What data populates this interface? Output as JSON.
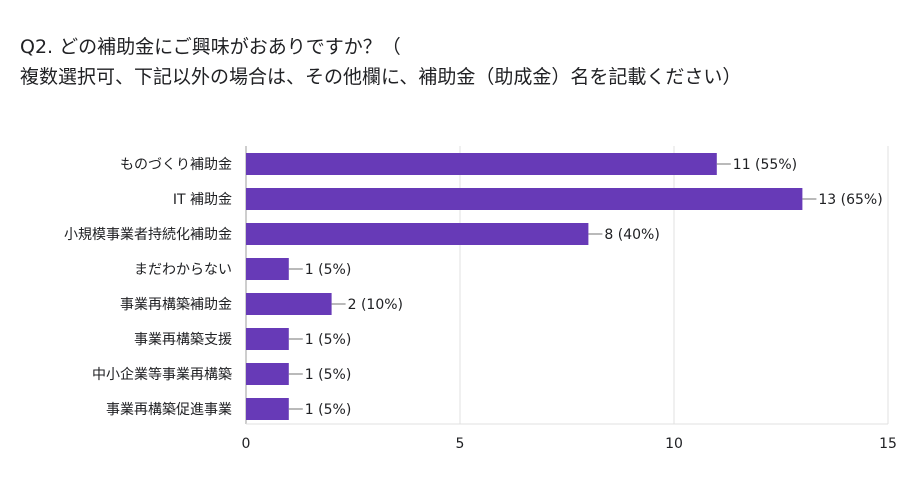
{
  "question": {
    "line1": "Q2. どの補助金にご興味がおありですか？（",
    "line2": "複数選択可、下記以外の場合は、その他欄に、補助金（助成金）名を記載ください）"
  },
  "colors": {
    "bar": "#673ab7",
    "grid": "#e0e0e0",
    "axis": "#9e9e9e",
    "text": "#202124"
  },
  "chart_data": {
    "type": "bar",
    "orientation": "horizontal",
    "categories": [
      "ものづくり補助金",
      "IT 補助金",
      "小規模事業者持続化補助金",
      "まだわからない",
      "事業再構築補助金",
      "事業再構築支援",
      "中小企業等事業再構築",
      "事業再構築促進事業"
    ],
    "values": [
      11,
      13,
      8,
      1,
      2,
      1,
      1,
      1
    ],
    "value_labels": [
      "11 (55%)",
      "13 (65%)",
      "8 (40%)",
      "1 (5%)",
      "2 (10%)",
      "1 (5%)",
      "1 (5%)",
      "1 (5%)"
    ],
    "xlim": [
      0,
      15
    ],
    "xticks": [
      "0",
      "5",
      "10",
      "15"
    ],
    "grid": true,
    "legend": "none"
  }
}
